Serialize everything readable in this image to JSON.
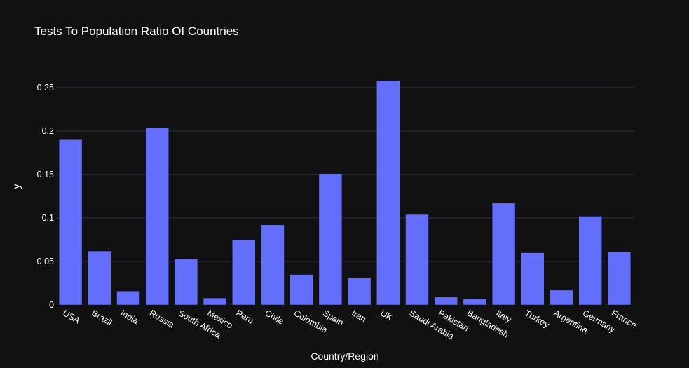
{
  "chart_data": {
    "type": "bar",
    "title": "Tests To Population Ratio Of Countries",
    "xlabel": "Country/Region",
    "ylabel": "y",
    "categories": [
      "USA",
      "Brazil",
      "India",
      "Russia",
      "South Africa",
      "Mexico",
      "Peru",
      "Chile",
      "Colombia",
      "Spain",
      "Iran",
      "UK",
      "Saudi Arabia",
      "Pakistan",
      "Bangladesh",
      "Italy",
      "Turkey",
      "Argentina",
      "Germany",
      "France"
    ],
    "values": [
      0.19,
      0.062,
      0.016,
      0.204,
      0.053,
      0.008,
      0.075,
      0.092,
      0.035,
      0.151,
      0.031,
      0.258,
      0.104,
      0.009,
      0.007,
      0.117,
      0.06,
      0.017,
      0.102,
      0.061
    ],
    "ylim": [
      0,
      0.27
    ],
    "yticks": [
      0,
      0.05,
      0.1,
      0.15,
      0.2,
      0.25
    ],
    "ytick_labels": [
      "0",
      "0.05",
      "0.1",
      "0.15",
      "0.2",
      "0.25"
    ],
    "grid": true,
    "colors": {
      "bar": "#636efa",
      "background": "#111111",
      "grid": "#283442",
      "text": "#ffffff"
    }
  }
}
